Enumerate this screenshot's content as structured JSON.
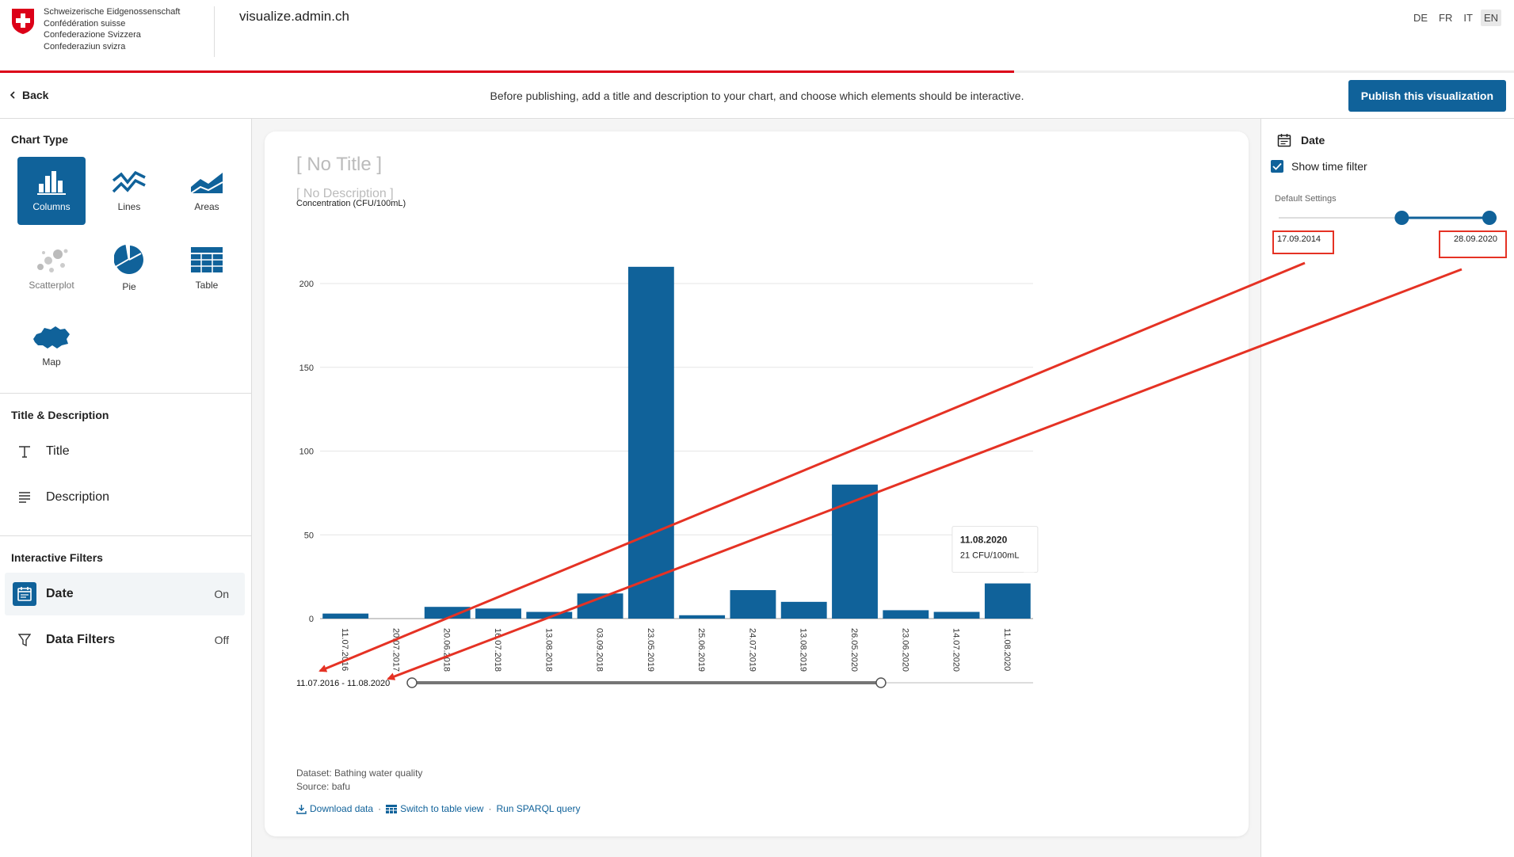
{
  "header": {
    "gov_names": [
      "Schweizerische Eidgenossenschaft",
      "Confédération suisse",
      "Confederazione Svizzera",
      "Confederaziun svizra"
    ],
    "site_title": "visualize.admin.ch",
    "languages": [
      "DE",
      "FR",
      "IT",
      "EN"
    ],
    "active_language": "EN",
    "progress_percent": 67,
    "accent_color": "#dc0018"
  },
  "actionbar": {
    "back_label": "Back",
    "hint": "Before publishing, add a title and description to your chart, and choose which elements should be interactive.",
    "publish_label": "Publish this visualization"
  },
  "sidebar": {
    "chart_type_title": "Chart Type",
    "chart_types": [
      {
        "label": "Columns",
        "icon": "columns-chart-icon",
        "selected": true
      },
      {
        "label": "Lines",
        "icon": "lines-chart-icon"
      },
      {
        "label": "Areas",
        "icon": "areas-chart-icon"
      },
      {
        "label": "Scatterplot",
        "icon": "scatterplot-chart-icon",
        "disabled": true
      },
      {
        "label": "Pie",
        "icon": "pie-chart-icon"
      },
      {
        "label": "Table",
        "icon": "table-chart-icon"
      },
      {
        "label": "Map",
        "icon": "map-chart-icon"
      }
    ],
    "title_desc_title": "Title & Description",
    "title_item": "Title",
    "description_item": "Description",
    "filters_title": "Interactive Filters",
    "date_item": "Date",
    "date_state": "On",
    "data_filters_item": "Data Filters",
    "data_filters_state": "Off"
  },
  "chart": {
    "title": "[ No Title ]",
    "description": "[ No Description ]",
    "range_label": "11.07.2016 - 11.08.2020",
    "tooltip": {
      "date": "11.08.2020",
      "value": "21 CFU/100mL"
    },
    "dataset": "Dataset: Bathing water quality",
    "source": "Source: bafu",
    "links": {
      "download": "Download data",
      "table": "Switch to table view",
      "sparql": "Run SPARQL query"
    },
    "bar_color": "#10629a"
  },
  "chart_data": {
    "type": "bar",
    "ylabel": "Concentration (CFU/100mL)",
    "ylim": [
      0,
      200
    ],
    "yticks": [
      0,
      50,
      100,
      150,
      200
    ],
    "categories": [
      "11.07.2016",
      "20.07.2017",
      "20.06.2018",
      "16.07.2018",
      "13.08.2018",
      "03.09.2018",
      "23.05.2019",
      "25.06.2019",
      "24.07.2019",
      "13.08.2019",
      "26.05.2020",
      "23.06.2020",
      "14.07.2020",
      "11.08.2020"
    ],
    "values": [
      3,
      0,
      7,
      6,
      4,
      15,
      210,
      2,
      17,
      10,
      80,
      5,
      4,
      21
    ],
    "time_brush": {
      "start_fraction": 0,
      "end_fraction": 0.755
    }
  },
  "right_panel": {
    "title": "Date",
    "show_time_filter": "Show time filter",
    "default_settings": "Default Settings",
    "date_from": "17.09.2014",
    "date_to": "28.09.2020",
    "slider": {
      "start_fraction": 0.565,
      "end_fraction": 1.0
    }
  },
  "annotations": {
    "color": "#e53224"
  }
}
